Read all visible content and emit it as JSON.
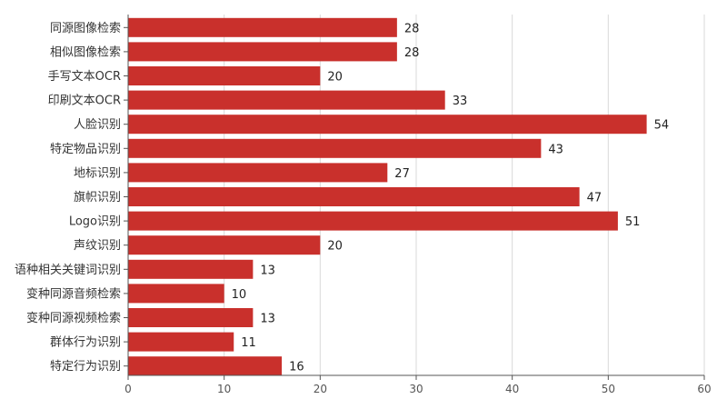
{
  "chart_data": {
    "type": "bar",
    "orientation": "horizontal",
    "title": "",
    "xlabel": "",
    "ylabel": "",
    "categories": [
      "同源图像检索",
      "相似图像检索",
      "手写文本OCR",
      "印刷文本OCR",
      "人脸识别",
      "特定物品识别",
      "地标识别",
      "旗帜识别",
      "Logo识别",
      "声纹识别",
      "语种相关关键词识别",
      "变种同源音频检索",
      "变种同源视频检索",
      "群体行为识别",
      "特定行为识别"
    ],
    "values": [
      28,
      28,
      20,
      33,
      54,
      43,
      27,
      47,
      51,
      20,
      13,
      10,
      13,
      11,
      16
    ],
    "xlim": [
      0,
      60
    ],
    "xticks": [
      0,
      10,
      20,
      30,
      40,
      50,
      60
    ],
    "grid": true,
    "data_labels": true,
    "bar_color": "#c9302c"
  }
}
